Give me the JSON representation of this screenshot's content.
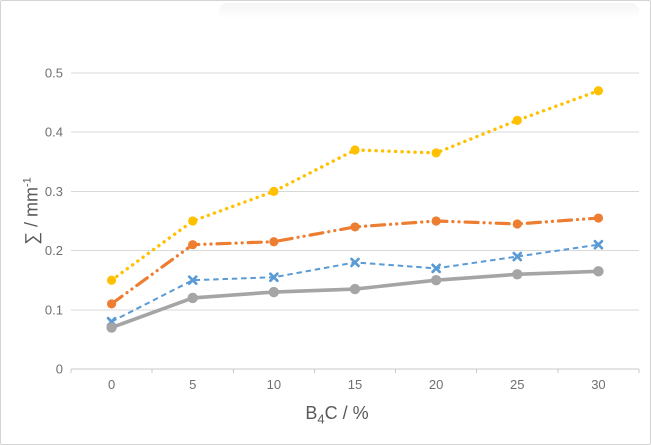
{
  "chart_data": {
    "type": "line",
    "categories": [
      "0",
      "5",
      "10",
      "15",
      "20",
      "25",
      "30"
    ],
    "series": [
      {
        "name": "yellow-dotted",
        "color": "#FFC000",
        "line_style": "dotted",
        "marker": "circle",
        "values": [
          0.15,
          0.25,
          0.3,
          0.37,
          0.365,
          0.42,
          0.47
        ]
      },
      {
        "name": "orange-long-dash-dot-dot",
        "color": "#ED7D31",
        "line_style": "long-dash-dot-dot",
        "marker": "circle",
        "values": [
          0.11,
          0.21,
          0.215,
          0.24,
          0.25,
          0.245,
          0.255
        ]
      },
      {
        "name": "blue-dashed",
        "color": "#5B9BD5",
        "line_style": "dashed",
        "marker": "x",
        "values": [
          0.08,
          0.15,
          0.155,
          0.18,
          0.17,
          0.19,
          0.21
        ]
      },
      {
        "name": "gray-solid",
        "color": "#A5A5A5",
        "line_style": "solid",
        "marker": "circle",
        "values": [
          0.07,
          0.12,
          0.13,
          0.135,
          0.15,
          0.16,
          0.165
        ]
      }
    ],
    "title": "",
    "xlabel": {
      "text": "B",
      "sub": "4",
      "suffix": "C / %"
    },
    "ylabel": {
      "text": "∑ / mm",
      "sup": "-1"
    },
    "y_ticks": [
      "0",
      "0.1",
      "0.2",
      "0.3",
      "0.4",
      "0.5"
    ],
    "ylim": [
      0,
      0.5
    ],
    "grid": "horizontal",
    "legend": "none",
    "gridline_color": "#D9D9D9",
    "axis_color": "#C9C9C9",
    "tick_label_color": "#707070",
    "axis_title_color": "#595959"
  }
}
